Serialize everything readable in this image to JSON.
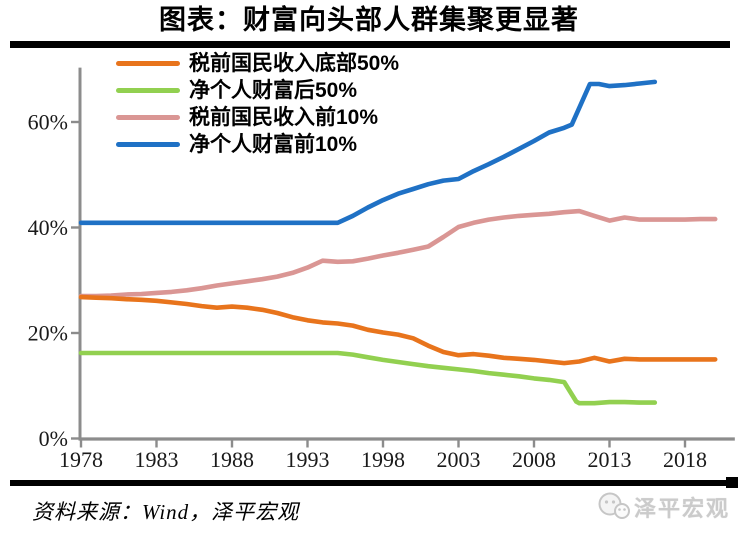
{
  "header": {
    "title": "图表：财富向头部人群集聚更显著"
  },
  "source": {
    "label": "资料来源：Wind，泽平宏观"
  },
  "watermark": {
    "brand": "泽平宏观",
    "icon": "wechat-chat-bubbles-icon"
  },
  "colors": {
    "axis": "#8c8c8c",
    "tick_text": "#1a1a1a",
    "rule": "#000000",
    "watermark": "#c9c9c9",
    "orange": "#e8741c",
    "green": "#92d050",
    "pink": "#da9694",
    "blue": "#1f71c5"
  },
  "chart_data": {
    "type": "line",
    "title": "图表：财富向头部人群集聚更显著",
    "xlabel": "",
    "ylabel": "",
    "grid": false,
    "legend_position": "top-left",
    "xlim": [
      1978,
      2021.3
    ],
    "ylim": [
      0,
      70.3
    ],
    "x_ticks": [
      1978,
      1983,
      1988,
      1993,
      1998,
      2003,
      2008,
      2013,
      2018
    ],
    "y_ticks": [
      {
        "value": 0,
        "label": "0%"
      },
      {
        "value": 20,
        "label": "20%"
      },
      {
        "value": 40,
        "label": "40%"
      },
      {
        "value": 60,
        "label": "60%"
      }
    ],
    "series": [
      {
        "id": "income-bottom-50",
        "name": "税前国民收入底部50%",
        "color": "#e8741c",
        "draw_order": 2,
        "points": [
          [
            1978,
            26.8
          ],
          [
            1979,
            26.7
          ],
          [
            1980,
            26.6
          ],
          [
            1981,
            26.4
          ],
          [
            1982,
            26.3
          ],
          [
            1983,
            26.1
          ],
          [
            1984,
            25.8
          ],
          [
            1985,
            25.5
          ],
          [
            1986,
            25.1
          ],
          [
            1987,
            24.8
          ],
          [
            1988,
            25.0
          ],
          [
            1989,
            24.8
          ],
          [
            1990,
            24.4
          ],
          [
            1991,
            23.8
          ],
          [
            1992,
            23.0
          ],
          [
            1993,
            22.4
          ],
          [
            1994,
            22.0
          ],
          [
            1995,
            21.8
          ],
          [
            1996,
            21.4
          ],
          [
            1997,
            20.6
          ],
          [
            1998,
            20.1
          ],
          [
            1999,
            19.7
          ],
          [
            2000,
            19.0
          ],
          [
            2001,
            17.6
          ],
          [
            2002,
            16.4
          ],
          [
            2003,
            15.8
          ],
          [
            2004,
            16.0
          ],
          [
            2005,
            15.7
          ],
          [
            2006,
            15.3
          ],
          [
            2007,
            15.1
          ],
          [
            2008,
            14.9
          ],
          [
            2009,
            14.6
          ],
          [
            2010,
            14.3
          ],
          [
            2011,
            14.6
          ],
          [
            2012,
            15.3
          ],
          [
            2013,
            14.6
          ],
          [
            2014,
            15.1
          ],
          [
            2015,
            15.0
          ],
          [
            2016,
            15.0
          ],
          [
            2017,
            15.0
          ],
          [
            2018,
            15.0
          ],
          [
            2019,
            15.0
          ],
          [
            2020,
            15.0
          ]
        ]
      },
      {
        "id": "wealth-bottom-50",
        "name": "净个人财富后50%",
        "color": "#92d050",
        "draw_order": 3,
        "points": [
          [
            1978,
            16.2
          ],
          [
            1983,
            16.2
          ],
          [
            1988,
            16.2
          ],
          [
            1993,
            16.2
          ],
          [
            1995,
            16.2
          ],
          [
            1996,
            15.9
          ],
          [
            1997,
            15.4
          ],
          [
            1998,
            14.9
          ],
          [
            1999,
            14.5
          ],
          [
            2000,
            14.1
          ],
          [
            2001,
            13.7
          ],
          [
            2002,
            13.4
          ],
          [
            2003,
            13.1
          ],
          [
            2004,
            12.8
          ],
          [
            2005,
            12.4
          ],
          [
            2006,
            12.1
          ],
          [
            2007,
            11.8
          ],
          [
            2008,
            11.4
          ],
          [
            2009,
            11.1
          ],
          [
            2010,
            10.7
          ],
          [
            2010.8,
            7.0
          ],
          [
            2011,
            6.7
          ],
          [
            2012,
            6.7
          ],
          [
            2013,
            6.9
          ],
          [
            2014,
            6.9
          ],
          [
            2015,
            6.8
          ],
          [
            2016,
            6.8
          ]
        ]
      },
      {
        "id": "income-top-10",
        "name": "税前国民收入前10%",
        "color": "#da9694",
        "draw_order": 1,
        "points": [
          [
            1978,
            27.0
          ],
          [
            1979,
            27.0
          ],
          [
            1980,
            27.1
          ],
          [
            1981,
            27.3
          ],
          [
            1982,
            27.4
          ],
          [
            1983,
            27.6
          ],
          [
            1984,
            27.8
          ],
          [
            1985,
            28.1
          ],
          [
            1986,
            28.5
          ],
          [
            1987,
            29.0
          ],
          [
            1988,
            29.4
          ],
          [
            1989,
            29.8
          ],
          [
            1990,
            30.2
          ],
          [
            1991,
            30.7
          ],
          [
            1992,
            31.4
          ],
          [
            1993,
            32.4
          ],
          [
            1994,
            33.7
          ],
          [
            1995,
            33.5
          ],
          [
            1996,
            33.6
          ],
          [
            1997,
            34.1
          ],
          [
            1998,
            34.7
          ],
          [
            1999,
            35.2
          ],
          [
            2000,
            35.8
          ],
          [
            2001,
            36.4
          ],
          [
            2002,
            38.2
          ],
          [
            2003,
            40.1
          ],
          [
            2004,
            40.9
          ],
          [
            2005,
            41.5
          ],
          [
            2006,
            41.9
          ],
          [
            2007,
            42.2
          ],
          [
            2008,
            42.4
          ],
          [
            2009,
            42.6
          ],
          [
            2010,
            42.9
          ],
          [
            2011,
            43.1
          ],
          [
            2012,
            42.2
          ],
          [
            2013,
            41.3
          ],
          [
            2014,
            41.9
          ],
          [
            2015,
            41.5
          ],
          [
            2016,
            41.5
          ],
          [
            2017,
            41.5
          ],
          [
            2018,
            41.5
          ],
          [
            2019,
            41.6
          ],
          [
            2020,
            41.6
          ]
        ]
      },
      {
        "id": "wealth-top-10",
        "name": "净个人财富前10%",
        "color": "#1f71c5",
        "draw_order": 4,
        "points": [
          [
            1978,
            40.9
          ],
          [
            1983,
            40.9
          ],
          [
            1988,
            40.9
          ],
          [
            1993,
            40.9
          ],
          [
            1995,
            40.9
          ],
          [
            1996,
            42.2
          ],
          [
            1997,
            43.8
          ],
          [
            1998,
            45.2
          ],
          [
            1999,
            46.4
          ],
          [
            2000,
            47.3
          ],
          [
            2001,
            48.2
          ],
          [
            2002,
            48.9
          ],
          [
            2003,
            49.2
          ],
          [
            2004,
            50.7
          ],
          [
            2005,
            52.0
          ],
          [
            2006,
            53.4
          ],
          [
            2007,
            54.9
          ],
          [
            2008,
            56.4
          ],
          [
            2009,
            58.0
          ],
          [
            2010,
            58.9
          ],
          [
            2010.5,
            59.5
          ],
          [
            2011.7,
            67.2
          ],
          [
            2012.3,
            67.2
          ],
          [
            2013,
            66.8
          ],
          [
            2014,
            67.0
          ],
          [
            2015,
            67.3
          ],
          [
            2016,
            67.6
          ]
        ]
      }
    ]
  }
}
